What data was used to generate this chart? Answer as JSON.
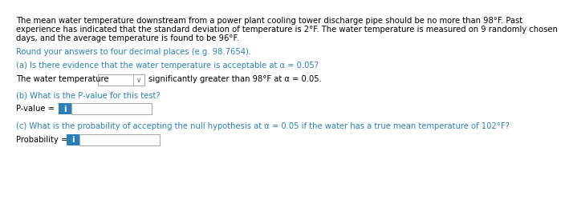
{
  "bg_color": "#ffffff",
  "text_color": "#000000",
  "blue_color": "#2980b9",
  "info_btn_color": "#2980b9",
  "border_color": "#aaaaaa",
  "font_size": 7.2,
  "line1": "The mean water temperature downstream from a power plant cooling tower discharge pipe should be no more than 98°F. Past",
  "line2": "experience has indicated that the standard deviation of temperature is 2°F. The water temperature is measured on 9 randomly chosen",
  "line3": "days, and the average temperature is found to be 96°F.",
  "round_text": "Round your answers to four decimal places (e.g. 98.7654).",
  "part_a": "(a) Is there evidence that the water temperature is acceptable at α = 0.05?",
  "part_a_pre": "The water temperature",
  "part_a_post": "significantly greater than 98°F at α = 0.05.",
  "part_b": "(b) What is the P-value for this test?",
  "part_b_pre": "P-value =",
  "info_text": "i",
  "part_c": "(c) What is the probability of accepting the null hypothesis at α = 0.05 if the water has a true mean temperature of 102°F?",
  "part_c_pre": "Probability ="
}
